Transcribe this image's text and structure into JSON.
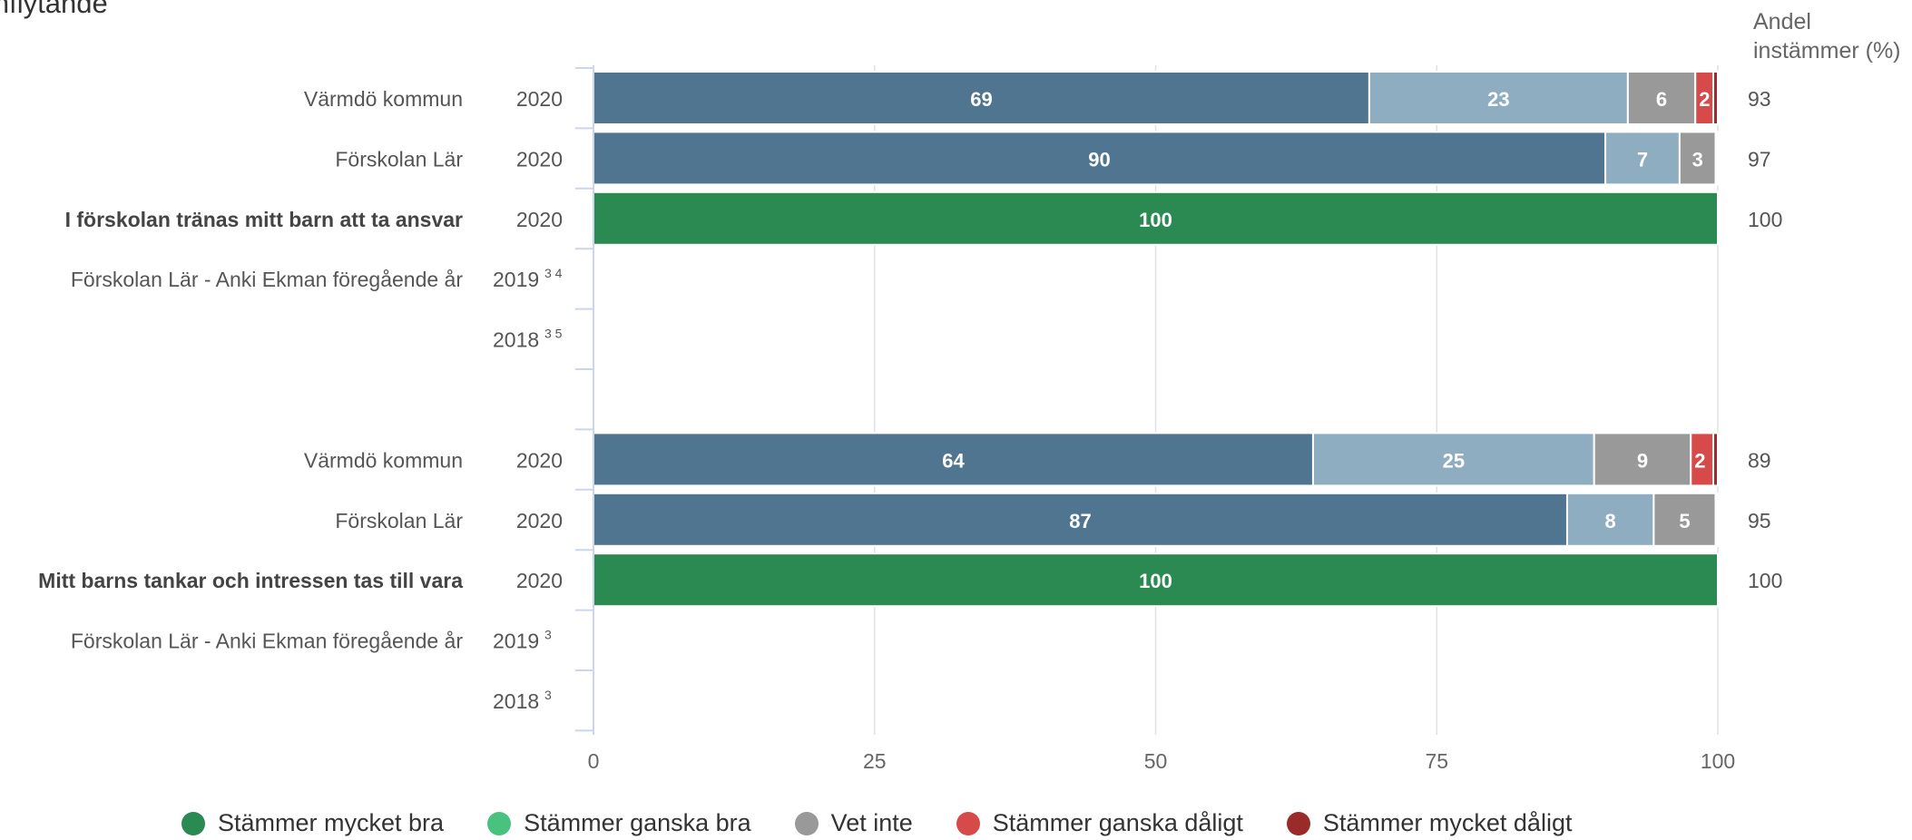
{
  "chart_title_fragment": "inflytande",
  "share_header_line1": "Andel",
  "share_header_line2": "instämmer (%)",
  "chart_data": {
    "type": "bar",
    "orientation": "horizontal",
    "stacked": true,
    "xlim": [
      0,
      100
    ],
    "xticks": [
      0,
      25,
      50,
      75,
      100
    ],
    "grid": true,
    "legend_position": "bottom",
    "series": [
      {
        "name": "Stämmer mycket bra",
        "color": "#2b8a52"
      },
      {
        "name": "Stämmer ganska bra",
        "color": "#49c27f"
      },
      {
        "name": "Vet inte",
        "color": "#999999"
      },
      {
        "name": "Stämmer ganska dåligt",
        "color": "#d64a4a"
      },
      {
        "name": "Stämmer mycket dåligt",
        "color": "#9b2a2a"
      }
    ],
    "rows": [
      {
        "label": "Värmdö kommun",
        "year": "2020",
        "sup": "",
        "bold": false,
        "colors": [
          "#4f7590",
          "#8fadc0",
          "#999999",
          "#d64a4a",
          "#9b2a2a"
        ],
        "values": [
          69,
          23,
          6,
          1.6,
          0.4
        ],
        "labels": [
          "69",
          "23",
          "6",
          "2",
          "0"
        ],
        "share": "93"
      },
      {
        "label": "Förskolan Lär",
        "year": "2020",
        "sup": "",
        "bold": false,
        "colors": [
          "#4f7590",
          "#8fadc0",
          "#999999",
          "#d64a4a",
          "#9b2a2a"
        ],
        "values": [
          90,
          6.6,
          3.2,
          0.1,
          0.1
        ],
        "labels": [
          "90",
          "7",
          "3",
          "0",
          "0"
        ],
        "share": "97"
      },
      {
        "label": "I förskolan tränas mitt barn att ta ansvar",
        "year": "2020",
        "sup": "",
        "bold": true,
        "colors": [
          "#2b8a52",
          "#49c27f",
          "#999999",
          "#d64a4a",
          "#9b2a2a"
        ],
        "values": [
          100,
          0,
          0,
          0,
          0
        ],
        "labels": [
          "100",
          "0",
          "",
          "",
          ""
        ],
        "share": "100"
      },
      {
        "label": "Förskolan Lär - Anki Ekman föregående år",
        "year": "2019",
        "sup": "3 4",
        "bold": false,
        "colors": [],
        "values": [],
        "labels": [],
        "share": ""
      },
      {
        "label": "",
        "year": "2018",
        "sup": "3 5",
        "bold": false,
        "colors": [],
        "values": [],
        "labels": [],
        "share": ""
      },
      {
        "label": "",
        "year": "",
        "sup": "",
        "bold": false,
        "colors": [],
        "values": [],
        "labels": [],
        "share": ""
      },
      {
        "label": "Värmdö kommun",
        "year": "2020",
        "sup": "",
        "bold": false,
        "colors": [
          "#4f7590",
          "#8fadc0",
          "#999999",
          "#d64a4a",
          "#9b2a2a"
        ],
        "values": [
          64,
          25,
          8.6,
          2,
          0.4
        ],
        "labels": [
          "64",
          "25",
          "9",
          "2",
          "0"
        ],
        "share": "89"
      },
      {
        "label": "Förskolan Lär",
        "year": "2020",
        "sup": "",
        "bold": false,
        "colors": [
          "#4f7590",
          "#8fadc0",
          "#999999",
          "#d64a4a",
          "#9b2a2a"
        ],
        "values": [
          86.6,
          7.7,
          5.5,
          0.1,
          0.1
        ],
        "labels": [
          "87",
          "8",
          "5",
          "0",
          "0"
        ],
        "share": "95"
      },
      {
        "label": "Mitt barns tankar och intressen tas till vara",
        "year": "2020",
        "sup": "",
        "bold": true,
        "colors": [
          "#2b8a52",
          "#49c27f",
          "#999999",
          "#d64a4a",
          "#9b2a2a"
        ],
        "values": [
          100,
          0,
          0,
          0,
          0
        ],
        "labels": [
          "100",
          "0",
          "",
          "",
          ""
        ],
        "share": "100"
      },
      {
        "label": "Förskolan Lär - Anki Ekman föregående år",
        "year": "2019",
        "sup": "3",
        "bold": false,
        "colors": [],
        "values": [],
        "labels": [],
        "share": ""
      },
      {
        "label": "",
        "year": "2018",
        "sup": "3",
        "bold": false,
        "colors": [],
        "values": [],
        "labels": [],
        "share": ""
      }
    ]
  }
}
